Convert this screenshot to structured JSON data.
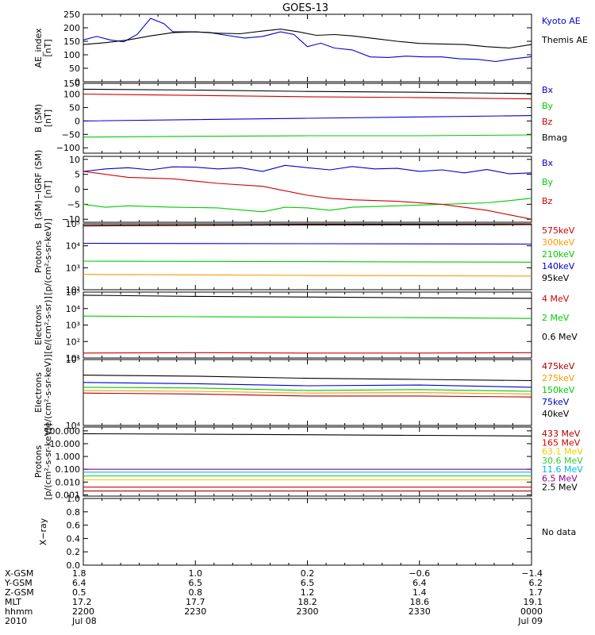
{
  "title": "GOES-13",
  "colors": {
    "black": "#000000",
    "blue": "#0000d0",
    "green": "#00cc00",
    "red": "#d00000",
    "orange": "#ff9900",
    "darkred": "#b00000",
    "yellow": "#e8d000",
    "lime": "#33cc33",
    "cyan": "#00b8e0",
    "purple": "#900090"
  },
  "chart_data": [
    {
      "id": "ae",
      "type": "line",
      "ylabel": "AE_index\n[nT]",
      "yscale": "linear",
      "ylim": [
        0,
        250
      ],
      "ticks": [
        "0",
        "50",
        "100",
        "150",
        "200",
        "250"
      ],
      "tickvals": [
        0,
        50,
        100,
        150,
        200,
        250
      ],
      "series": [
        {
          "name": "Kyoto AE",
          "color": "#0000d0",
          "x": [
            0,
            0.03,
            0.06,
            0.09,
            0.12,
            0.15,
            0.18,
            0.2,
            0.24,
            0.28,
            0.32,
            0.36,
            0.4,
            0.44,
            0.47,
            0.5,
            0.53,
            0.56,
            0.6,
            0.64,
            0.68,
            0.72,
            0.76,
            0.8,
            0.84,
            0.88,
            0.92,
            0.96,
            1
          ],
          "values": [
            155,
            168,
            155,
            148,
            175,
            235,
            215,
            185,
            185,
            183,
            172,
            162,
            168,
            185,
            175,
            130,
            143,
            125,
            118,
            92,
            90,
            95,
            92,
            92,
            85,
            83,
            75,
            85,
            93
          ]
        },
        {
          "name": "Themis AE",
          "color": "#000000",
          "x": [
            0,
            0.05,
            0.1,
            0.15,
            0.2,
            0.25,
            0.3,
            0.35,
            0.4,
            0.44,
            0.48,
            0.52,
            0.56,
            0.6,
            0.65,
            0.7,
            0.75,
            0.8,
            0.85,
            0.9,
            0.95,
            1
          ],
          "values": [
            138,
            145,
            155,
            170,
            182,
            185,
            180,
            178,
            188,
            195,
            185,
            172,
            175,
            170,
            160,
            150,
            142,
            140,
            138,
            130,
            125,
            138
          ]
        }
      ]
    },
    {
      "id": "bsm",
      "type": "line",
      "ylabel": "B (SM)\n[nT]",
      "yscale": "linear",
      "ylim": [
        -120,
        140
      ],
      "ticks": [
        "−100",
        "−50",
        "0",
        "50",
        "100",
        "150"
      ],
      "tickvals": [
        -100,
        -50,
        0,
        50,
        100,
        150
      ],
      "series": [
        {
          "name": "Bx",
          "color": "#0000d0",
          "x": [
            0,
            0.25,
            0.5,
            0.75,
            1
          ],
          "values": [
            0,
            5,
            10,
            15,
            20
          ]
        },
        {
          "name": "By",
          "color": "#00cc00",
          "x": [
            0,
            0.25,
            0.5,
            0.75,
            1
          ],
          "values": [
            -60,
            -57,
            -55,
            -55,
            -52
          ]
        },
        {
          "name": "Bz",
          "color": "#d00000",
          "x": [
            0,
            0.25,
            0.5,
            0.75,
            1
          ],
          "values": [
            100,
            95,
            90,
            87,
            82
          ]
        },
        {
          "name": "Bmag",
          "color": "#000000",
          "x": [
            0,
            0.25,
            0.5,
            0.75,
            1
          ],
          "values": [
            118,
            115,
            110,
            107,
            102
          ]
        }
      ]
    },
    {
      "id": "bigrf",
      "type": "line",
      "ylabel": "B (SM)−IGRF (SM)\n[nT]",
      "yscale": "linear",
      "ylim": [
        -11,
        11
      ],
      "ticks": [
        "−10",
        "−5",
        "0",
        "5",
        "10"
      ],
      "tickvals": [
        -10,
        -5,
        0,
        5,
        10
      ],
      "series": [
        {
          "name": "Bx",
          "color": "#0000d0",
          "x": [
            0,
            0.05,
            0.1,
            0.15,
            0.2,
            0.25,
            0.3,
            0.35,
            0.4,
            0.45,
            0.5,
            0.55,
            0.6,
            0.65,
            0.7,
            0.75,
            0.8,
            0.85,
            0.9,
            0.95,
            1
          ],
          "values": [
            6,
            6.8,
            7.2,
            6.5,
            7.5,
            7.4,
            6.8,
            7.2,
            6,
            8,
            7.2,
            6.5,
            7.6,
            6.8,
            7,
            6,
            6.5,
            5.5,
            6.6,
            5.2,
            5.5
          ]
        },
        {
          "name": "By",
          "color": "#00cc00",
          "x": [
            0,
            0.05,
            0.1,
            0.2,
            0.3,
            0.4,
            0.45,
            0.5,
            0.55,
            0.6,
            0.7,
            0.8,
            0.9,
            0.95,
            1
          ],
          "values": [
            -5,
            -6,
            -5.5,
            -6,
            -6.2,
            -7.5,
            -6,
            -6.2,
            -7,
            -6,
            -5.5,
            -5,
            -4.5,
            -3.8,
            -3
          ]
        },
        {
          "name": "Bz",
          "color": "#d00000",
          "x": [
            0,
            0.1,
            0.2,
            0.3,
            0.4,
            0.5,
            0.55,
            0.6,
            0.7,
            0.8,
            0.9,
            0.95,
            1
          ],
          "values": [
            6,
            4,
            3.5,
            2,
            1,
            -2,
            -3,
            -3.5,
            -4,
            -5,
            -7,
            -8.5,
            -10
          ]
        }
      ]
    },
    {
      "id": "protons_lo",
      "type": "line",
      "ylabel": "Protons\n[p/(cm²-s-sr-keV)]",
      "yscale": "log",
      "ylim": [
        100,
        100000
      ],
      "ticks": [
        "10²",
        "10³",
        "10⁴",
        "10⁵"
      ],
      "tickvals": [
        100,
        1000,
        10000,
        100000
      ],
      "series": [
        {
          "name": "575keV",
          "color": "#d00000",
          "x": [
            0,
            0.5,
            1
          ],
          "values": [
            80000,
            90000,
            95000
          ]
        },
        {
          "name": "300keV",
          "color": "#ff9900",
          "x": [
            0,
            0.5,
            1
          ],
          "values": [
            500,
            450,
            420
          ]
        },
        {
          "name": "210keV",
          "color": "#00cc00",
          "x": [
            0,
            0.5,
            1
          ],
          "values": [
            2000,
            1900,
            1800
          ]
        },
        {
          "name": "140keV",
          "color": "#0000d0",
          "x": [
            0,
            0.5,
            1
          ],
          "values": [
            13000,
            12500,
            12000
          ]
        },
        {
          "name": "95keV",
          "color": "#000000",
          "x": [
            0,
            0.5,
            1
          ],
          "values": [
            85000,
            90000,
            92000
          ]
        }
      ]
    },
    {
      "id": "electrons_hi",
      "type": "line",
      "ylabel": "Electrons\n[e/(cm²-s-sr)]",
      "yscale": "log",
      "ylim": [
        10,
        100000
      ],
      "ticks": [
        "10¹",
        "10²",
        "10³",
        "10⁴",
        "10⁵"
      ],
      "tickvals": [
        10,
        100,
        1000,
        10000,
        100000
      ],
      "series": [
        {
          "name": "4 MeV",
          "color": "#d00000",
          "x": [
            0,
            0.25,
            0.5,
            0.75,
            1
          ],
          "values": [
            20,
            21,
            20,
            20,
            21
          ]
        },
        {
          "name": "2 MeV",
          "color": "#00cc00",
          "x": [
            0,
            0.25,
            0.5,
            0.75,
            1
          ],
          "values": [
            3500,
            3200,
            3000,
            2800,
            2500
          ]
        },
        {
          "name": "0.6 MeV",
          "color": "#000000",
          "x": [
            0,
            0.25,
            0.5,
            0.75,
            1
          ],
          "values": [
            65000,
            55000,
            50000,
            45000,
            42000
          ]
        }
      ]
    },
    {
      "id": "electrons_lo",
      "type": "line",
      "ylabel": "Electrons\n[e/(cm²-s-sr-keV)]",
      "yscale": "log",
      "ylim": [
        10000,
        100000
      ],
      "ticks": [
        "10⁴",
        "10⁵"
      ],
      "tickvals": [
        10000,
        100000
      ],
      "series": [
        {
          "name": "475keV",
          "color": "#b00000",
          "x": [
            0,
            0.25,
            0.5,
            0.75,
            1
          ],
          "values": [
            31000,
            30000,
            28000,
            28000,
            27000
          ]
        },
        {
          "name": "275keV",
          "color": "#ff9900",
          "x": [
            0,
            0.25,
            0.5,
            0.75,
            1
          ],
          "values": [
            34000,
            33000,
            31000,
            31500,
            30000
          ]
        },
        {
          "name": "150keV",
          "color": "#00cc00",
          "x": [
            0,
            0.25,
            0.5,
            0.75,
            1
          ],
          "values": [
            38000,
            37000,
            34000,
            35000,
            33000
          ]
        },
        {
          "name": "75keV",
          "color": "#0000d0",
          "x": [
            0,
            0.25,
            0.5,
            0.75,
            1
          ],
          "values": [
            45000,
            43000,
            40000,
            41000,
            38000
          ]
        },
        {
          "name": "40keV",
          "color": "#000000",
          "x": [
            0,
            0.25,
            0.5,
            0.75,
            1
          ],
          "values": [
            58000,
            56000,
            52000,
            50000,
            48000
          ]
        }
      ]
    },
    {
      "id": "protons_hi",
      "type": "line",
      "ylabel": "Protons\n[p/(cm²-s-sr-keV)]",
      "yscale": "log",
      "ylim": [
        0.0008,
        200
      ],
      "ticks": [
        "0.001",
        "0.010",
        "0.100",
        "1.000",
        "10.000",
        "100.000"
      ],
      "tickvals": [
        0.001,
        0.01,
        0.1,
        1,
        10,
        100
      ],
      "series": [
        {
          "name": "433 MeV",
          "color": "#b00000",
          "x": [
            0,
            0.5,
            1
          ],
          "values": [
            0.002,
            0.002,
            0.002
          ]
        },
        {
          "name": "165 MeV",
          "color": "#d00000",
          "x": [
            0,
            0.5,
            1
          ],
          "values": [
            0.004,
            0.004,
            0.004
          ]
        },
        {
          "name": "63.1 MeV",
          "color": "#e8d000",
          "x": [
            0,
            0.5,
            1
          ],
          "values": [
            0.015,
            0.015,
            0.015
          ]
        },
        {
          "name": "30.6 MeV",
          "color": "#33cc33",
          "x": [
            0,
            0.5,
            1
          ],
          "values": [
            0.03,
            0.03,
            0.03
          ]
        },
        {
          "name": "11.6 MeV",
          "color": "#00b8e0",
          "x": [
            0,
            0.5,
            1
          ],
          "values": [
            0.06,
            0.06,
            0.06
          ]
        },
        {
          "name": "6.5 MeV",
          "color": "#900090",
          "x": [
            0,
            0.5,
            1
          ],
          "values": [
            0.1,
            0.1,
            0.1
          ]
        },
        {
          "name": "2.5 MeV",
          "color": "#000000",
          "x": [
            0,
            0.5,
            1
          ],
          "values": [
            60,
            50,
            40
          ]
        }
      ]
    },
    {
      "id": "xray",
      "type": "line",
      "ylabel": "X−ray",
      "yscale": "linear",
      "ylim": [
        0,
        1
      ],
      "ticks": [
        "0.0",
        "0.2",
        "0.4",
        "0.6",
        "0.8",
        "1.0"
      ],
      "tickvals": [
        0,
        0.2,
        0.4,
        0.6,
        0.8,
        1
      ],
      "series": [],
      "note": "No data"
    }
  ],
  "axis_table": {
    "row_labels": [
      "X-GSM",
      "Y-GSM",
      "Z-GSM",
      "MLT",
      "hhmm",
      "2010"
    ],
    "columns": [
      [
        "1.8",
        "6.4",
        "0.5",
        "17.2",
        "2200",
        "Jul 08"
      ],
      [
        "1.0",
        "6.5",
        "0.8",
        "17.7",
        "2230",
        ""
      ],
      [
        "0.2",
        "6.5",
        "1.2",
        "18.2",
        "2300",
        ""
      ],
      [
        "−0.6",
        "6.4",
        "1.4",
        "18.6",
        "2330",
        ""
      ],
      [
        "−1.4",
        "6.2",
        "1.7",
        "19.1",
        "0000",
        "Jul 09"
      ]
    ]
  }
}
